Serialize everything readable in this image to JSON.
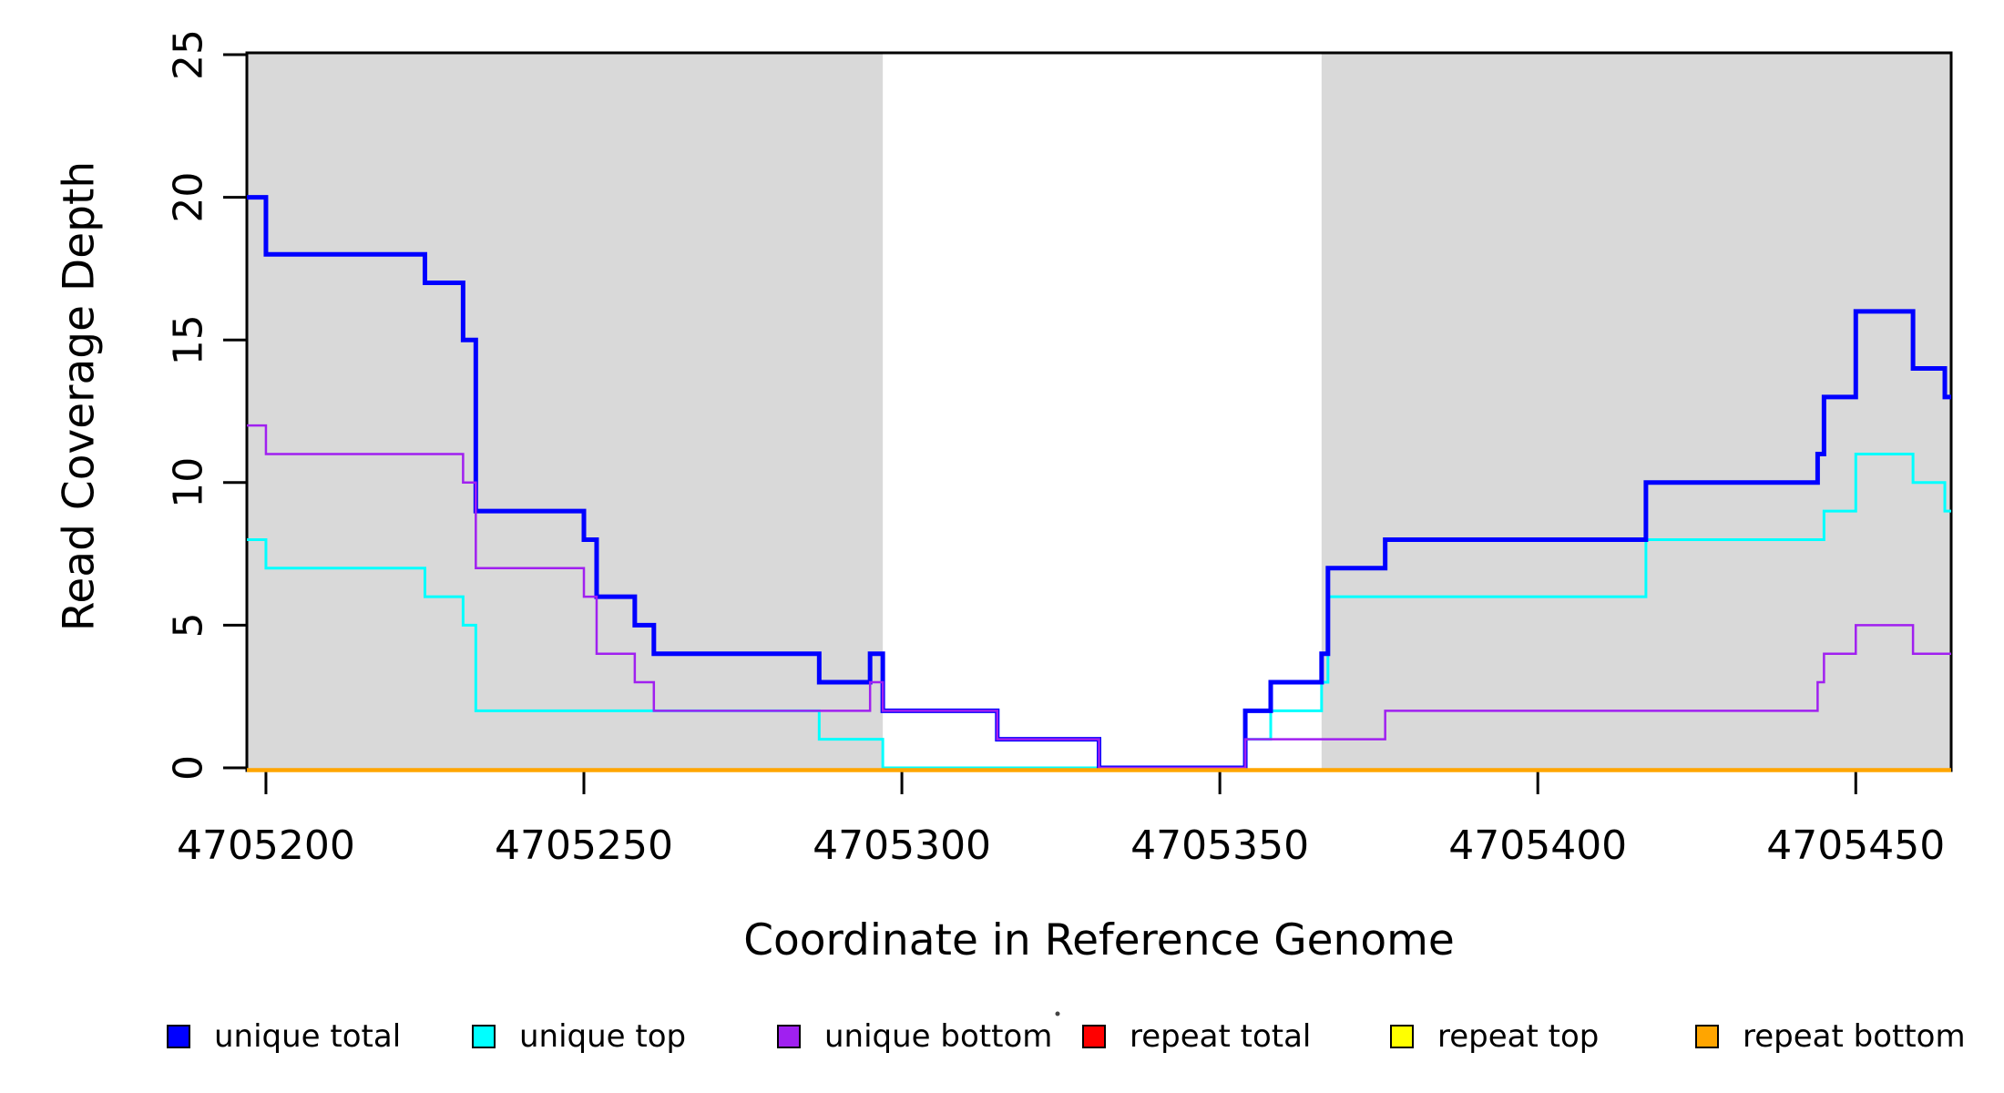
{
  "chart_data": {
    "type": "line",
    "subtype": "step-coverage-plot",
    "title": "",
    "xlabel": "Coordinate in Reference Genome",
    "ylabel": "Read Coverage Depth",
    "xlim": [
      4705197,
      4705465
    ],
    "ylim": [
      0,
      25
    ],
    "x_ticks": [
      4705200,
      4705250,
      4705300,
      4705350,
      4705400,
      4705450
    ],
    "y_ticks": [
      0,
      5,
      10,
      15,
      20,
      25
    ],
    "grid": "off",
    "background_color": "#ffffff",
    "shade_color": "#D9D9D9",
    "shaded_regions": [
      {
        "from": 4705197,
        "to": 4705297
      },
      {
        "from": 4705366,
        "to": 4705465
      }
    ],
    "series": [
      {
        "name": "unique total",
        "color": "#0000FF",
        "steps": [
          [
            4705197,
            20
          ],
          [
            4705200,
            18
          ],
          [
            4705225,
            17
          ],
          [
            4705231,
            15
          ],
          [
            4705233,
            9
          ],
          [
            4705250,
            8
          ],
          [
            4705252,
            6
          ],
          [
            4705258,
            5
          ],
          [
            4705261,
            4
          ],
          [
            4705287,
            3
          ],
          [
            4705295,
            4
          ],
          [
            4705297,
            2
          ],
          [
            4705315,
            1
          ],
          [
            4705331,
            0
          ],
          [
            4705354,
            2
          ],
          [
            4705358,
            3
          ],
          [
            4705366,
            4
          ],
          [
            4705367,
            7
          ],
          [
            4705376,
            8
          ],
          [
            4705417,
            10
          ],
          [
            4705444,
            11
          ],
          [
            4705445,
            13
          ],
          [
            4705450,
            16
          ],
          [
            4705459,
            14
          ],
          [
            4705464,
            13
          ]
        ]
      },
      {
        "name": "unique top",
        "color": "#00FFFF",
        "steps": [
          [
            4705197,
            8
          ],
          [
            4705200,
            7
          ],
          [
            4705225,
            6
          ],
          [
            4705231,
            5
          ],
          [
            4705233,
            2
          ],
          [
            4705287,
            1
          ],
          [
            4705297,
            0
          ],
          [
            4705354,
            1
          ],
          [
            4705358,
            2
          ],
          [
            4705366,
            3
          ],
          [
            4705367,
            6
          ],
          [
            4705417,
            8
          ],
          [
            4705445,
            9
          ],
          [
            4705450,
            11
          ],
          [
            4705459,
            10
          ],
          [
            4705464,
            9
          ]
        ]
      },
      {
        "name": "unique bottom",
        "color": "#A020F0",
        "steps": [
          [
            4705197,
            12
          ],
          [
            4705200,
            11
          ],
          [
            4705231,
            10
          ],
          [
            4705233,
            7
          ],
          [
            4705250,
            6
          ],
          [
            4705252,
            4
          ],
          [
            4705258,
            3
          ],
          [
            4705261,
            2
          ],
          [
            4705295,
            3
          ],
          [
            4705297,
            2
          ],
          [
            4705315,
            1
          ],
          [
            4705331,
            0
          ],
          [
            4705354,
            1
          ],
          [
            4705376,
            2
          ],
          [
            4705444,
            3
          ],
          [
            4705445,
            4
          ],
          [
            4705450,
            5
          ],
          [
            4705459,
            4
          ]
        ]
      },
      {
        "name": "repeat total",
        "color": "#FF0000",
        "steps": [
          [
            4705197,
            0
          ]
        ]
      },
      {
        "name": "repeat top",
        "color": "#FFFF00",
        "steps": [
          [
            4705197,
            0
          ]
        ]
      },
      {
        "name": "repeat bottom",
        "color": "#FFA500",
        "steps": [
          [
            4705197,
            0
          ]
        ]
      }
    ],
    "legend": {
      "position": "bottom",
      "items": [
        {
          "label": "unique total",
          "color": "#0000FF"
        },
        {
          "label": "unique top",
          "color": "#00FFFF"
        },
        {
          "label": "unique bottom",
          "color": "#A020F0"
        },
        {
          "label": "repeat total",
          "color": "#FF0000"
        },
        {
          "label": "repeat top",
          "color": "#FFFF00"
        },
        {
          "label": "repeat bottom",
          "color": "#FFA500"
        }
      ]
    }
  }
}
